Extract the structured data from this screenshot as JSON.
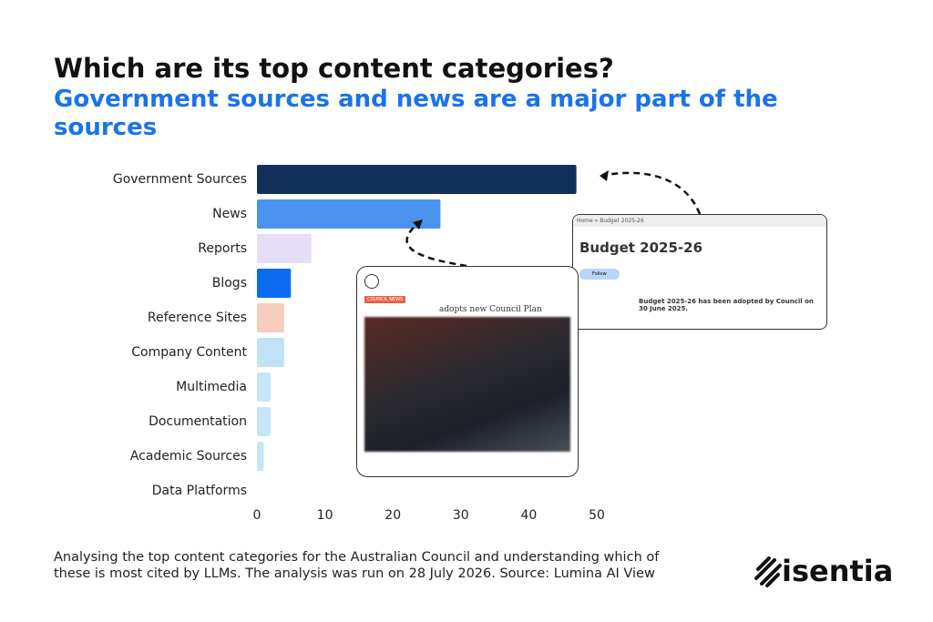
{
  "chart_data": {
    "type": "barh",
    "title": "Which are its top content categories?",
    "subtitle": "Government sources and news are a major part of the sources",
    "categories": [
      "Government Sources",
      "News",
      "Reports",
      "Blogs",
      "Reference Sites",
      "Company Content",
      "Multimedia",
      "Documentation",
      "Academic Sources",
      "Data Platforms"
    ],
    "values": [
      47,
      27,
      8,
      5,
      4,
      4,
      2,
      2,
      1,
      0
    ],
    "colors": [
      "#13305a",
      "#4b93ee",
      "#e6ddf7",
      "#0b6cf0",
      "#f6cdbf",
      "#bfe3f5",
      "#c4e6f8",
      "#c4e6f8",
      "#c4e6f8",
      "#c4e6f8"
    ],
    "xlim": [
      0,
      50
    ],
    "xticks": [
      0,
      10,
      20,
      30,
      40,
      50
    ],
    "grid": false,
    "caption": "Analysing the top content categories for the Australian Council and understanding which of these is most cited by LLMs. The analysis was run on 28 July 2026. Source: Lumina AI View"
  },
  "logo": "isentia",
  "insets": {
    "budget": {
      "breadcrumb": "Home » Budget 2025-26",
      "heading": "Budget 2025-26",
      "button": "Follow",
      "text": "Budget 2025-26 has been adopted by Council on 30 June 2025."
    },
    "news": {
      "badge": "COUNCIL NEWS",
      "headline": "adopts new Council Plan"
    }
  }
}
